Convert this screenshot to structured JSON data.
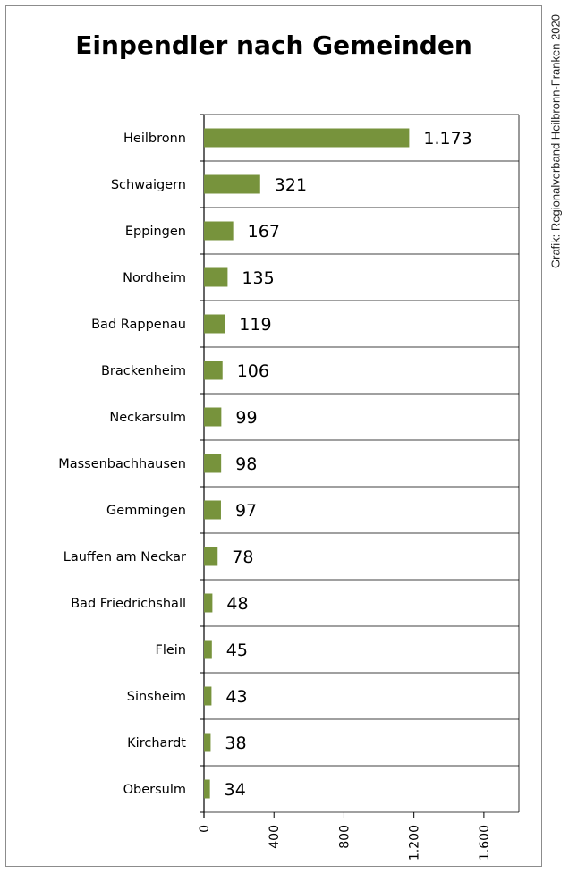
{
  "chart_data": {
    "type": "bar",
    "orientation": "horizontal",
    "title": "Einpendler nach Gemeinden",
    "source_note": "Grafik: Regionalverband Heilbronn-Franken 2020",
    "categories": [
      "Heilbronn",
      "Schwaigern",
      "Eppingen",
      "Nordheim",
      "Bad Rappenau",
      "Brackenheim",
      "Neckarsulm",
      "Massenbachhausen",
      "Gemmingen",
      "Lauffen am Neckar",
      "Bad Friedrichshall",
      "Flein",
      "Sinsheim",
      "Kirchardt",
      "Obersulm"
    ],
    "values": [
      1173,
      321,
      167,
      135,
      119,
      106,
      99,
      98,
      97,
      78,
      48,
      45,
      43,
      38,
      34
    ],
    "value_labels": [
      "1.173",
      "321",
      "167",
      "135",
      "119",
      "106",
      "99",
      "98",
      "97",
      "78",
      "48",
      "45",
      "43",
      "38",
      "34"
    ],
    "xlim": [
      0,
      1800
    ],
    "xticks": [
      0,
      400,
      800,
      1200,
      1600
    ],
    "xtick_labels": [
      "0",
      "400",
      "800",
      "1.200",
      "1.600"
    ],
    "grid": "horizontal",
    "bar_color": "#77933c"
  }
}
